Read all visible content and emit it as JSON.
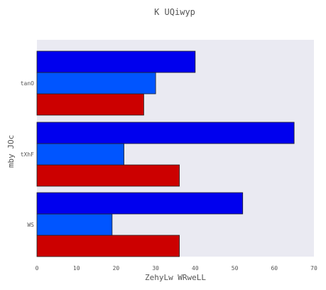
{
  "chart_data": {
    "type": "bar",
    "orientation": "horizontal",
    "title": "K UQiwyp",
    "xlabel": "ZehyLw WRweLL",
    "ylabel": "mby JOc",
    "categories": [
      "WS",
      "tXhF",
      "tanO"
    ],
    "series": [
      {
        "color": "#cc0000",
        "values": [
          36,
          36,
          27
        ]
      },
      {
        "color": "#0055ff",
        "values": [
          19,
          22,
          30
        ]
      },
      {
        "color": "#0000ee",
        "values": [
          52,
          65,
          40
        ]
      }
    ],
    "xlim": [
      0,
      70
    ],
    "xticks": [
      0,
      10,
      20,
      30,
      40,
      50,
      60,
      70
    ],
    "grid": false,
    "background": "#eaeaf2"
  }
}
